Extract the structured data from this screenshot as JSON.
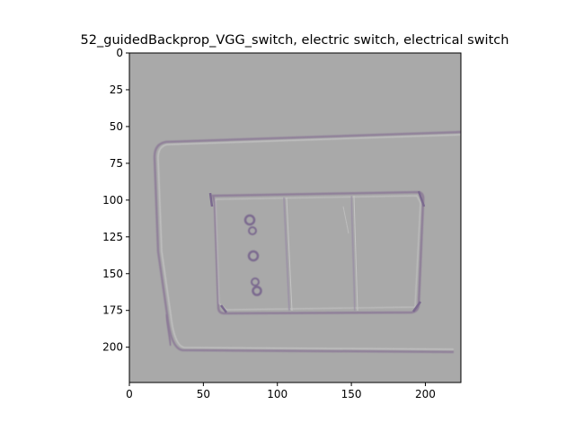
{
  "figure": {
    "title": "52_guidedBackprop_VGG_switch, electric switch, electrical switch"
  },
  "axes": {
    "x_ticks": [
      0,
      50,
      100,
      150,
      200
    ],
    "y_ticks": [
      0,
      25,
      50,
      75,
      100,
      125,
      150,
      175,
      200
    ],
    "x_range": [
      0,
      224
    ],
    "y_range": [
      0,
      224
    ],
    "y_inverted": true
  },
  "image": {
    "subject": "electric switch",
    "background_color": "#a9a9a9",
    "edge_color": "#8c7a97",
    "highlight_color": "#c8c8c8",
    "dot_color": "#7b6a8f"
  }
}
